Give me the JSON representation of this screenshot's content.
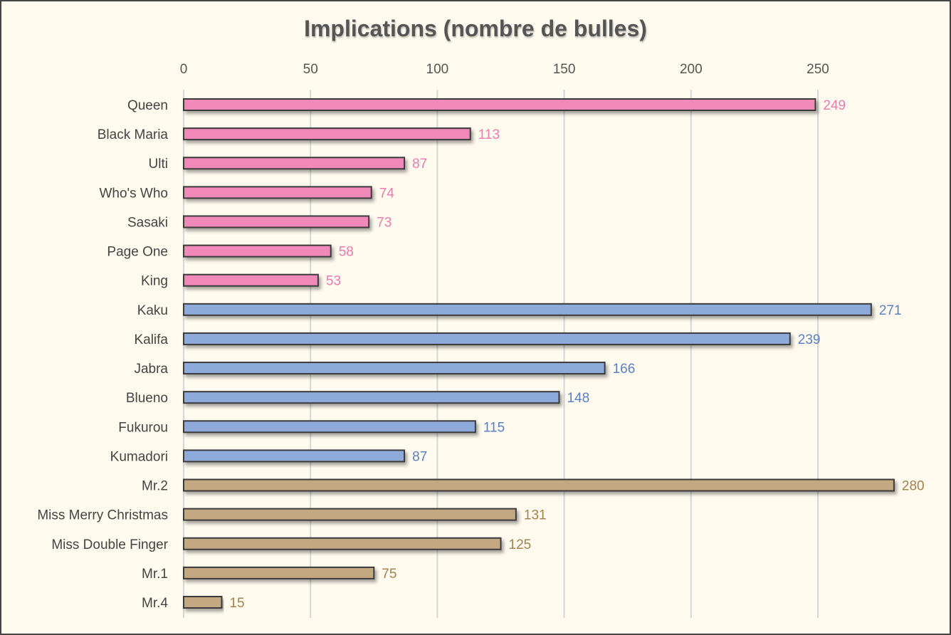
{
  "chart_data": {
    "type": "bar",
    "orientation": "horizontal",
    "title": "Implications (nombre de bulles)",
    "xlabel": "",
    "ylabel": "",
    "xlim": [
      0,
      280
    ],
    "xticks": [
      0,
      50,
      100,
      150,
      200,
      250
    ],
    "axis_position": "top",
    "grid": true,
    "legend": "none",
    "categories": [
      "Queen",
      "Black Maria",
      "Ulti",
      "Who's Who",
      "Sasaki",
      "Page One",
      "King",
      "Kaku",
      "Kalifa",
      "Jabra",
      "Blueno",
      "Fukurou",
      "Kumadori",
      "Mr.2",
      "Miss Merry Christmas",
      "Miss Double Finger",
      "Mr.1",
      "Mr.4"
    ],
    "values": [
      249,
      113,
      87,
      74,
      73,
      58,
      53,
      271,
      239,
      166,
      148,
      115,
      87,
      280,
      131,
      125,
      75,
      15
    ],
    "groups": [
      "pink",
      "pink",
      "pink",
      "pink",
      "pink",
      "pink",
      "pink",
      "blue",
      "blue",
      "blue",
      "blue",
      "blue",
      "blue",
      "tan",
      "tan",
      "tan",
      "tan",
      "tan"
    ],
    "colors": {
      "pink": {
        "bar": "#f088b8",
        "label": "#f07ab0"
      },
      "blue": {
        "bar": "#8eaadb",
        "label": "#5b80c8"
      },
      "tan": {
        "bar": "#c4a882",
        "label": "#a5814f"
      }
    }
  }
}
